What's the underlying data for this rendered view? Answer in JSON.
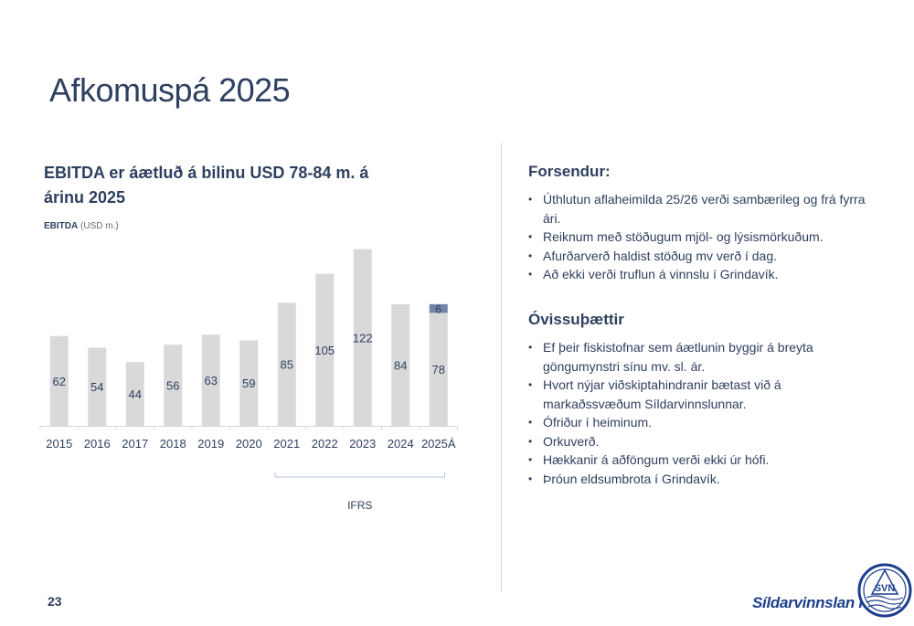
{
  "slide": {
    "title": "Afkomuspá 2025",
    "page_number": "23"
  },
  "chart_section": {
    "heading": "EBITDA er áætluð á bilinu USD 78-84 m. á árinu 2025",
    "subtitle_bold": "EBITDA",
    "subtitle_unit": "(USD m.)",
    "bracket_label": "IFRS"
  },
  "chart_data": {
    "type": "bar",
    "stacked": true,
    "categories": [
      "2015",
      "2016",
      "2017",
      "2018",
      "2019",
      "2020",
      "2021",
      "2022",
      "2023",
      "2024",
      "2025Á"
    ],
    "series": [
      {
        "values": [
          62,
          54,
          44,
          56,
          63,
          59,
          85,
          105,
          122,
          84,
          78
        ],
        "color": "#d9d9d9"
      },
      {
        "values": [
          0,
          0,
          0,
          0,
          0,
          0,
          0,
          0,
          0,
          0,
          6
        ],
        "color": "#6f84a8"
      }
    ],
    "bracket_range": [
      "2021",
      "2025Á"
    ],
    "title": "",
    "grid": false
  },
  "assumptions": {
    "heading": "Forsendur:",
    "items": [
      "Úthlutun aflaheimilda 25/26 verði sambærileg og frá fyrra ári.",
      "Reiknum með stöðugum mjöl- og lýsismörkuðum.",
      "Afurðarverð haldist stöðug mv verð í dag.",
      "Að ekki verði truflun á vinnslu í Grindavík."
    ]
  },
  "uncertainties": {
    "heading": "Óvissuþættir",
    "items": [
      "Ef þeir fiskistofnar sem áætlunin byggir á breyta göngumynstri sínu mv. sl. ár.",
      "Hvort nýjar viðskiptahindranir bætast við á markaðssvæðum Síldarvinnslunnar.",
      "Ófriður í heiminum.",
      "Orkuverð.",
      "Hækkanir á aðföngum verði ekki úr hófi.",
      "Þróun eldsumbrota í Grindavík."
    ]
  },
  "brand": {
    "name": "Síldarvinnslan hf",
    "logo_text": "SVN",
    "color": "#1c3e8c"
  }
}
